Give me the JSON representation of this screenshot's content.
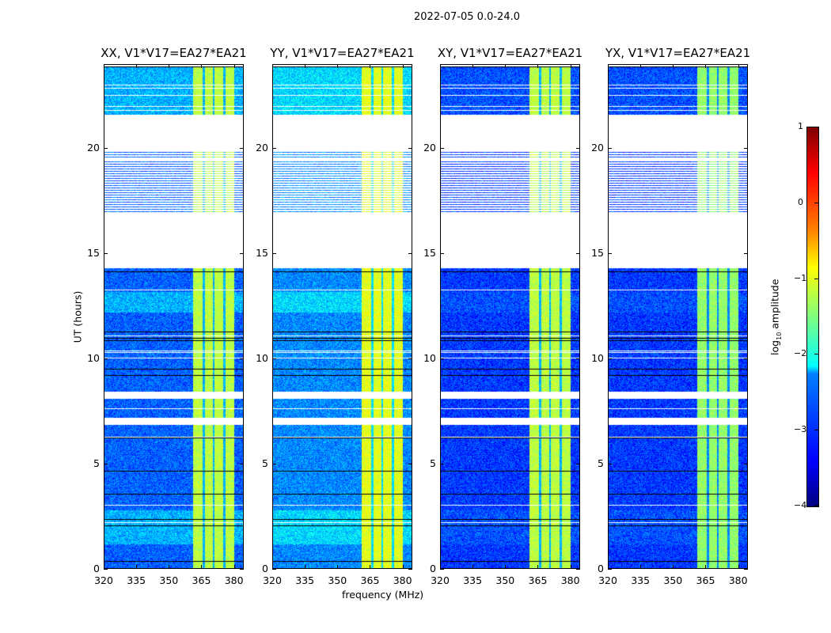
{
  "suptitle": "2022-07-05 0.0-24.0",
  "chart_data": {
    "type": "heatmap",
    "title": "2022-07-05 0.0-24.0",
    "xlabel": "frequency (MHz)",
    "ylabel": "UT (hours)",
    "xlim": [
      320,
      384.5
    ],
    "ylim": [
      0,
      24
    ],
    "xticks": [
      "320",
      "335",
      "350",
      "365",
      "380"
    ],
    "xtick_values": [
      320,
      335,
      350,
      365,
      380
    ],
    "yticks": [
      "0",
      "5",
      "10",
      "15",
      "20"
    ],
    "ytick_values": [
      0,
      5,
      10,
      15,
      20
    ],
    "panels": [
      {
        "title": "XX, V1*V17=EA27*EA21",
        "background_log_amp": -2.9,
        "rfi_band_log_amp": -1.2
      },
      {
        "title": "YY, V1*V17=EA27*EA21",
        "background_log_amp": -2.7,
        "rfi_band_log_amp": -1.0
      },
      {
        "title": "XY, V1*V17=EA27*EA21",
        "background_log_amp": -3.1,
        "rfi_band_log_amp": -1.2
      },
      {
        "title": "YX, V1*V17=EA27*EA21",
        "background_log_amp": -3.1,
        "rfi_band_log_amp": -1.4
      }
    ],
    "rfi_band_mhz": [
      361,
      380
    ],
    "flagged_ut_ranges": [
      [
        19.9,
        21.6
      ],
      [
        14.3,
        16.9
      ],
      [
        6.85,
        7.2
      ],
      [
        8.15,
        8.45
      ],
      [
        23.9,
        24
      ]
    ],
    "colorbar": {
      "label": "log10 amplitude",
      "label_main": "log",
      "label_sub": "10",
      "label_rest": " amplitude",
      "range": [
        -4,
        1
      ],
      "ticks": [
        "1",
        "0",
        "−1",
        "−2",
        "−3",
        "−4"
      ],
      "tick_values": [
        1,
        0,
        -1,
        -2,
        -3,
        -4
      ],
      "colormap": "jet"
    }
  }
}
